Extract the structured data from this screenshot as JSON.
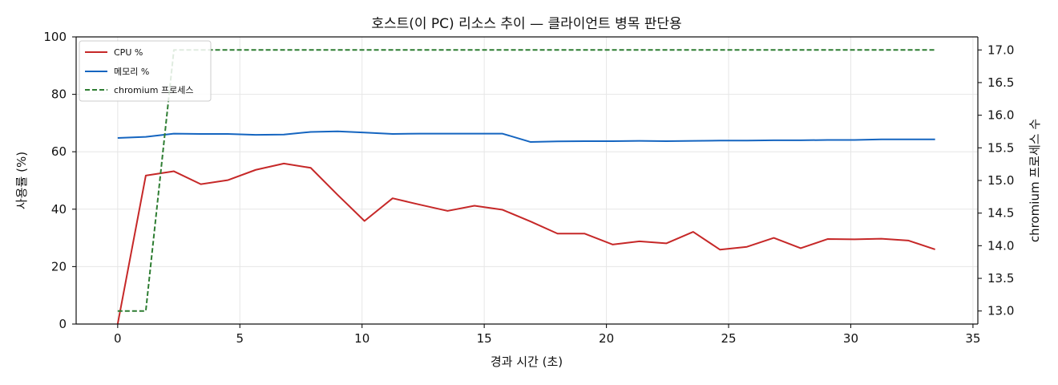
{
  "chart_data": {
    "type": "line",
    "title": "호스트(이 PC) 리소스 추이 — 클라이언트 병목 판단용",
    "xlabel": "경과 시간 (초)",
    "ylabel": "사용률 (%)",
    "ylabel_right": "chromium 프로세스 수",
    "xlim": [
      -1.7,
      35.2
    ],
    "ylim": [
      0,
      100
    ],
    "ylim_right": [
      12.8,
      17.2
    ],
    "xticks": [
      0,
      5,
      10,
      15,
      20,
      25,
      30,
      35
    ],
    "yticks": [
      0,
      20,
      40,
      60,
      80,
      100
    ],
    "yticks_right": [
      13.0,
      13.5,
      14.0,
      14.5,
      15.0,
      15.5,
      16.0,
      16.5,
      17.0
    ],
    "xtick_labels": [
      "0",
      "5",
      "10",
      "15",
      "20",
      "25",
      "30",
      "35"
    ],
    "ytick_labels": [
      "0",
      "20",
      "40",
      "60",
      "80",
      "100"
    ],
    "ytick_labels_right": [
      "13.0",
      "13.5",
      "14.0",
      "14.5",
      "15.0",
      "15.5",
      "16.0",
      "16.5",
      "17.0"
    ],
    "grid": true,
    "legend_position": "top-left",
    "series": [
      {
        "name": "CPU %",
        "axis": "left",
        "color": "#c62828",
        "style": "solid",
        "x": [
          0,
          1.15,
          2.3,
          3.4,
          4.5,
          5.65,
          6.8,
          7.9,
          9.0,
          10.1,
          11.25,
          12.35,
          13.5,
          14.6,
          15.75,
          16.9,
          18.0,
          19.1,
          20.25,
          21.35,
          22.45,
          23.55,
          24.65,
          25.75,
          26.85,
          27.95,
          29.05,
          30.15,
          31.25,
          32.35,
          33.45
        ],
        "values": [
          0,
          51.7,
          53.2,
          48.7,
          50.1,
          53.7,
          55.9,
          54.4,
          45.0,
          35.9,
          43.8,
          41.6,
          39.4,
          41.2,
          39.8,
          35.7,
          31.5,
          31.5,
          27.7,
          28.8,
          28.1,
          32.1,
          25.9,
          26.9,
          30.0,
          26.4,
          29.6,
          29.5,
          29.7,
          29.1,
          26.0
        ]
      },
      {
        "name": "메모리 %",
        "axis": "left",
        "color": "#1565c0",
        "style": "solid",
        "x": [
          0,
          1.15,
          2.3,
          3.4,
          4.5,
          5.65,
          6.8,
          7.9,
          9.0,
          10.1,
          11.25,
          12.35,
          13.5,
          14.6,
          15.75,
          16.9,
          18.0,
          19.1,
          20.25,
          21.35,
          22.45,
          23.55,
          24.65,
          25.75,
          26.85,
          27.95,
          29.05,
          30.15,
          31.25,
          32.35,
          33.45
        ],
        "values": [
          64.8,
          65.2,
          66.3,
          66.2,
          66.2,
          65.9,
          66.0,
          66.9,
          67.1,
          66.7,
          66.2,
          66.3,
          66.3,
          66.3,
          66.3,
          63.4,
          63.6,
          63.7,
          63.7,
          63.8,
          63.7,
          63.8,
          63.9,
          63.9,
          64.0,
          64.0,
          64.1,
          64.1,
          64.3,
          64.3,
          64.3
        ]
      },
      {
        "name": "chromium 프로세스",
        "axis": "right",
        "color": "#2e7d32",
        "style": "dashed",
        "x": [
          0,
          1.15,
          2.3,
          3.4,
          4.5,
          5.65,
          6.8,
          7.9,
          9.0,
          10.1,
          11.25,
          12.35,
          13.5,
          14.6,
          15.75,
          16.9,
          18.0,
          19.1,
          20.25,
          21.35,
          22.45,
          23.55,
          24.65,
          25.75,
          26.85,
          27.95,
          29.05,
          30.15,
          31.25,
          32.35,
          33.45
        ],
        "values": [
          13,
          13,
          17,
          17,
          17,
          17,
          17,
          17,
          17,
          17,
          17,
          17,
          17,
          17,
          17,
          17,
          17,
          17,
          17,
          17,
          17,
          17,
          17,
          17,
          17,
          17,
          17,
          17,
          17,
          17,
          17
        ]
      }
    ]
  }
}
